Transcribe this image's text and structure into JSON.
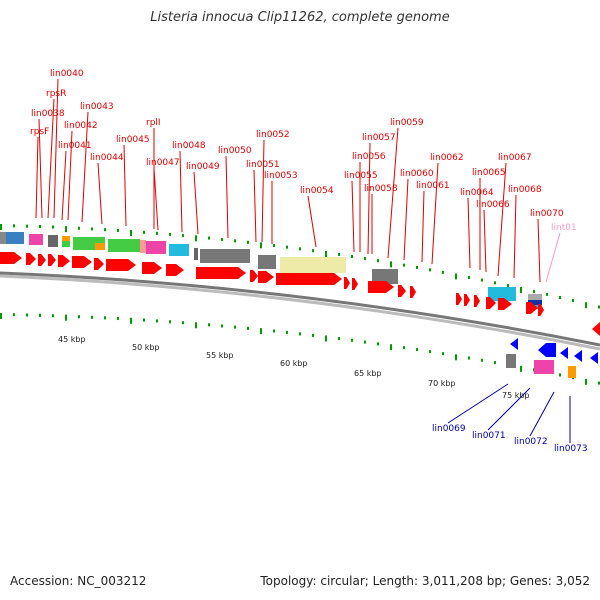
{
  "title": "Listeria innocua Clip11262, complete genome",
  "footer": {
    "accession": "Accession: NC_003212",
    "summary": "Topology: circular; Length: 3,011,208 bp; Genes: 3,052"
  },
  "colors": {
    "forward_gene": "#ff0000",
    "reverse_gene": "#0000ff",
    "forward_label": "#dd0000",
    "reverse_label": "#0000aa",
    "rna_label": "#ff99cc",
    "backbone": "#999999",
    "tick_mark": "#009900"
  },
  "scale_ticks": [
    "45 kbp",
    "50 kbp",
    "55 kbp",
    "60 kbp",
    "65 kbp",
    "70 kbp",
    "75 kbp"
  ],
  "forward_labels": [
    "rpsF",
    "lin0038",
    "rpsR",
    "lin0040",
    "lin0041",
    "lin0042",
    "lin0043",
    "lin0044",
    "lin0045",
    "rplI",
    "lin0047",
    "lin0048",
    "lin0049",
    "lin0050",
    "lin0051",
    "lin0052",
    "lin0053",
    "lin0054",
    "lin0055",
    "lin0056",
    "lin0057",
    "lin0058",
    "lin0059",
    "lin0060",
    "lin0061",
    "lin0062",
    "lin0064",
    "lin0065",
    "lin0066",
    "lin0067",
    "lin0068",
    "lin0070"
  ],
  "rna_labels": [
    "lint01"
  ],
  "reverse_labels": [
    "lin0069",
    "lin0071",
    "lin0072",
    "lin0073"
  ]
}
